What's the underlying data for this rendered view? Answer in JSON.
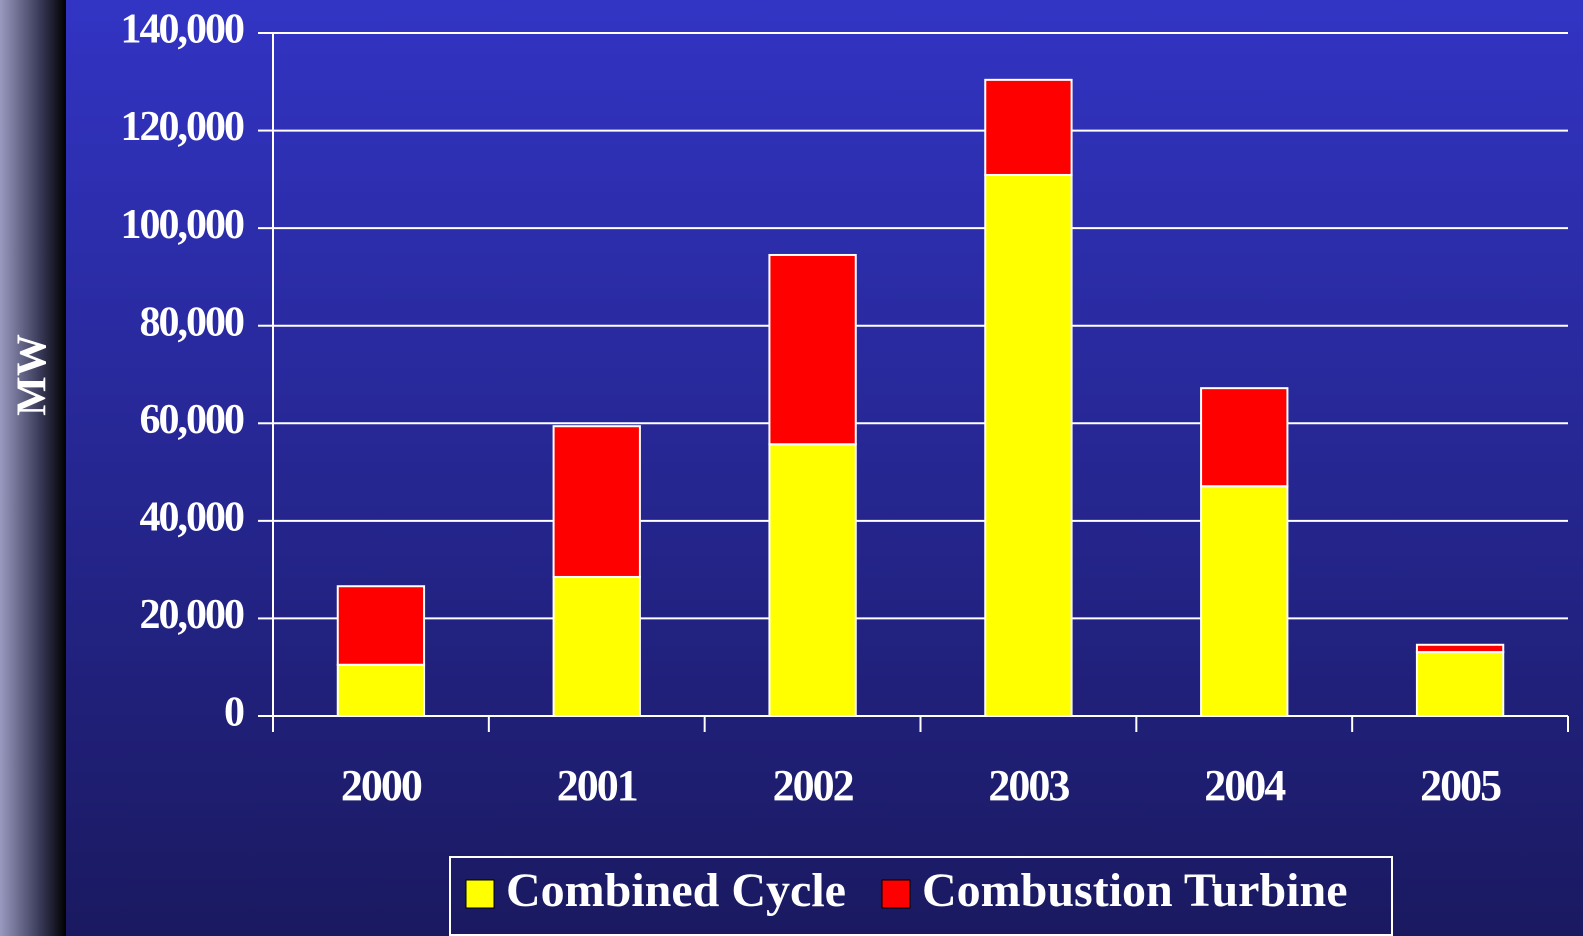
{
  "chart_data": {
    "type": "stacked_bar",
    "y_label": "MW",
    "categories": [
      "2000",
      "2001",
      "2002",
      "2003",
      "2004",
      "2005"
    ],
    "series": [
      {
        "name": "Combined Cycle",
        "color": "#ffff00",
        "values": [
          10500,
          28500,
          55700,
          110900,
          47100,
          13100
        ]
      },
      {
        "name": "Combustion Turbine",
        "color": "#ff0000",
        "values": [
          16100,
          30900,
          38800,
          19500,
          20100,
          1500
        ]
      }
    ],
    "ylim": [
      0,
      140000
    ],
    "yticks": [
      0,
      {
        "value": 20000,
        "label": "20,000"
      },
      {
        "value": 40000,
        "label": "40,000"
      },
      {
        "value": 60000,
        "label": "60,000"
      },
      {
        "value": 80000,
        "label": "80,000"
      },
      {
        "value": 100000,
        "label": "100,000"
      },
      {
        "value": 120000,
        "label": "120,000"
      },
      {
        "value": 140000,
        "label": "140,000"
      }
    ],
    "grid": true,
    "legend": "bottom"
  }
}
